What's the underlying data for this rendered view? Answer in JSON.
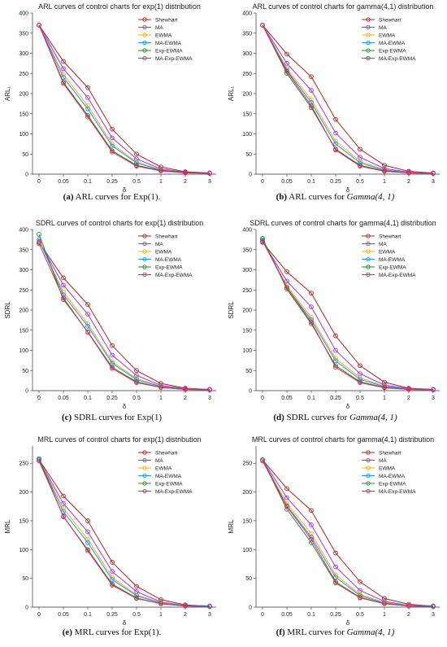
{
  "colors": {
    "Shewhart": "#b22222",
    "MA": "#9b30ff",
    "EWMA": "#f0b400",
    "MA-EWMA": "#1e90ff",
    "Exp-EWMA": "#228b22",
    "MA-Exp-EWMA": "#e0245e"
  },
  "chart_data": [
    {
      "type": "line",
      "title": "ARL curves of control charts for exp(1) distribution",
      "xlabel": "δ",
      "ylabel": "ARL₁",
      "categories": [
        "0",
        "0.05",
        "0.1",
        "0.25",
        "0.5",
        "1",
        "2",
        "3"
      ],
      "yticks": [
        0,
        50,
        100,
        150,
        200,
        250,
        300,
        350,
        400
      ],
      "ylim": [
        0,
        400
      ],
      "legend": "top-right",
      "caption": {
        "tag": "(a)",
        "text": "ARL curves for Exp(1).",
        "italic": ""
      },
      "series": [
        {
          "name": "Shewhart",
          "values": [
            370,
            280,
            215,
            112,
            50,
            18,
            6,
            3
          ]
        },
        {
          "name": "MA",
          "values": [
            370,
            262,
            190,
            90,
            38,
            13,
            5,
            3
          ]
        },
        {
          "name": "EWMA",
          "values": [
            370,
            248,
            170,
            75,
            30,
            11,
            4,
            2
          ]
        },
        {
          "name": "MA-EWMA",
          "values": [
            370,
            240,
            162,
            70,
            28,
            10,
            4,
            2
          ]
        },
        {
          "name": "Exp-EWMA",
          "values": [
            370,
            228,
            146,
            58,
            22,
            9,
            4,
            2
          ]
        },
        {
          "name": "MA-Exp-EWMA",
          "values": [
            370,
            225,
            142,
            55,
            20,
            8,
            3,
            2
          ]
        }
      ]
    },
    {
      "type": "line",
      "title": "ARL curves of control charts for gamma(4,1) distribution",
      "xlabel": "δ",
      "ylabel": "ARL₁",
      "categories": [
        "0",
        "0.05",
        "0.1",
        "0.25",
        "0.5",
        "1",
        "2",
        "3"
      ],
      "yticks": [
        0,
        50,
        100,
        150,
        200,
        250,
        300,
        350,
        400
      ],
      "ylim": [
        0,
        400
      ],
      "legend": "top-right",
      "caption": {
        "tag": "(b)",
        "text": "ARL curves for ",
        "italic": "Gamma(4, 1)"
      },
      "series": [
        {
          "name": "Shewhart",
          "values": [
            370,
            298,
            242,
            136,
            62,
            22,
            7,
            3
          ]
        },
        {
          "name": "MA",
          "values": [
            370,
            275,
            208,
            102,
            42,
            14,
            5,
            3
          ]
        },
        {
          "name": "EWMA",
          "values": [
            370,
            262,
            185,
            82,
            32,
            11,
            4,
            2
          ]
        },
        {
          "name": "MA-EWMA",
          "values": [
            370,
            258,
            178,
            75,
            28,
            10,
            4,
            2
          ]
        },
        {
          "name": "Exp-EWMA",
          "values": [
            370,
            250,
            165,
            62,
            22,
            8,
            3,
            2
          ]
        },
        {
          "name": "MA-Exp-EWMA",
          "values": [
            370,
            255,
            170,
            60,
            20,
            7,
            3,
            2
          ]
        }
      ]
    },
    {
      "type": "line",
      "title": "SDRL curves of control charts for exp(1) distribution",
      "xlabel": "δ",
      "ylabel": "SDRL",
      "categories": [
        "0",
        "0.05",
        "0.1",
        "0.25",
        "0.5",
        "1",
        "2",
        "3"
      ],
      "yticks": [
        0,
        50,
        100,
        150,
        200,
        250,
        300,
        350,
        400
      ],
      "ylim": [
        0,
        400
      ],
      "legend": "top-right",
      "caption": {
        "tag": "(c)",
        "text": "SDRL curves for Exp(1)",
        "italic": ""
      },
      "series": [
        {
          "name": "Shewhart",
          "values": [
            368,
            280,
            214,
            112,
            50,
            18,
            6,
            3
          ]
        },
        {
          "name": "MA",
          "values": [
            370,
            262,
            190,
            88,
            38,
            13,
            5,
            3
          ]
        },
        {
          "name": "EWMA",
          "values": [
            372,
            245,
            166,
            72,
            30,
            11,
            4,
            2
          ]
        },
        {
          "name": "MA-EWMA",
          "values": [
            375,
            238,
            160,
            68,
            27,
            10,
            4,
            2
          ]
        },
        {
          "name": "Exp-EWMA",
          "values": [
            388,
            226,
            146,
            58,
            22,
            8,
            3,
            2
          ]
        },
        {
          "name": "MA-Exp-EWMA",
          "values": [
            365,
            230,
            145,
            55,
            20,
            8,
            3,
            2
          ]
        }
      ]
    },
    {
      "type": "line",
      "title": "SDRL curves of control charts for gamma(4,1) distribution",
      "xlabel": "δ",
      "ylabel": "SDRL",
      "categories": [
        "0",
        "0.05",
        "0.1",
        "0.25",
        "0.5",
        "1",
        "2",
        "3"
      ],
      "yticks": [
        0,
        50,
        100,
        150,
        200,
        250,
        300,
        350,
        400
      ],
      "ylim": [
        0,
        400
      ],
      "legend": "top-right",
      "caption": {
        "tag": "(d)",
        "text": "SDRL curves for ",
        "italic": "Gamma(4, 1)"
      },
      "series": [
        {
          "name": "Shewhart",
          "values": [
            368,
            295,
            242,
            136,
            62,
            21,
            6,
            3
          ]
        },
        {
          "name": "MA",
          "values": [
            370,
            272,
            208,
            100,
            42,
            14,
            5,
            3
          ]
        },
        {
          "name": "EWMA",
          "values": [
            372,
            260,
            182,
            80,
            32,
            11,
            4,
            2
          ]
        },
        {
          "name": "MA-EWMA",
          "values": [
            375,
            256,
            176,
            74,
            28,
            10,
            4,
            2
          ]
        },
        {
          "name": "Exp-EWMA",
          "values": [
            378,
            252,
            166,
            62,
            22,
            8,
            3,
            2
          ]
        },
        {
          "name": "MA-Exp-EWMA",
          "values": [
            372,
            256,
            170,
            58,
            20,
            7,
            3,
            2
          ]
        }
      ]
    },
    {
      "type": "line",
      "title": "MRL curves of control charts for exp(1) distribution",
      "xlabel": "δ",
      "ylabel": "MRL",
      "categories": [
        "0",
        "0.05",
        "0.1",
        "0.25",
        "0.5",
        "1",
        "2",
        "3"
      ],
      "yticks": [
        0,
        50,
        100,
        150,
        200,
        250
      ],
      "ylim": [
        0,
        280
      ],
      "legend": "top-right",
      "caption": {
        "tag": "(e)",
        "text": "MRL curves for Exp(1).",
        "italic": ""
      },
      "series": [
        {
          "name": "Shewhart",
          "values": [
            256,
            193,
            150,
            78,
            36,
            13,
            4,
            2
          ]
        },
        {
          "name": "MA",
          "values": [
            256,
            180,
            131,
            62,
            27,
            9,
            3,
            2
          ]
        },
        {
          "name": "EWMA",
          "values": [
            256,
            172,
            118,
            52,
            21,
            8,
            3,
            2
          ]
        },
        {
          "name": "MA-EWMA",
          "values": [
            256,
            166,
            112,
            48,
            20,
            7,
            3,
            2
          ]
        },
        {
          "name": "Exp-EWMA",
          "values": [
            258,
            157,
            100,
            40,
            16,
            6,
            2,
            1
          ]
        },
        {
          "name": "MA-Exp-EWMA",
          "values": [
            254,
            158,
            98,
            38,
            15,
            6,
            2,
            1
          ]
        }
      ]
    },
    {
      "type": "line",
      "title": "MRL curves of control charts for gamma(4,1) distribution",
      "xlabel": "δ",
      "ylabel": "MRL",
      "categories": [
        "0",
        "0.05",
        "0.1",
        "0.25",
        "0.5",
        "1",
        "2",
        "3"
      ],
      "yticks": [
        0,
        50,
        100,
        150,
        200,
        250
      ],
      "ylim": [
        0,
        280
      ],
      "legend": "top-right",
      "caption": {
        "tag": "(f)",
        "text": "MRL curves for ",
        "italic": "Gamma(4, 1)"
      },
      "series": [
        {
          "name": "Shewhart",
          "values": [
            256,
            206,
            168,
            94,
            44,
            15,
            5,
            2
          ]
        },
        {
          "name": "MA",
          "values": [
            256,
            190,
            143,
            70,
            29,
            10,
            3,
            2
          ]
        },
        {
          "name": "EWMA",
          "values": [
            256,
            180,
            128,
            56,
            22,
            8,
            3,
            2
          ]
        },
        {
          "name": "MA-EWMA",
          "values": [
            256,
            176,
            122,
            52,
            20,
            7,
            3,
            2
          ]
        },
        {
          "name": "Exp-EWMA",
          "values": [
            256,
            170,
            112,
            42,
            16,
            6,
            2,
            1
          ]
        },
        {
          "name": "MA-Exp-EWMA",
          "values": [
            254,
            175,
            118,
            44,
            17,
            6,
            2,
            1
          ]
        }
      ]
    }
  ]
}
